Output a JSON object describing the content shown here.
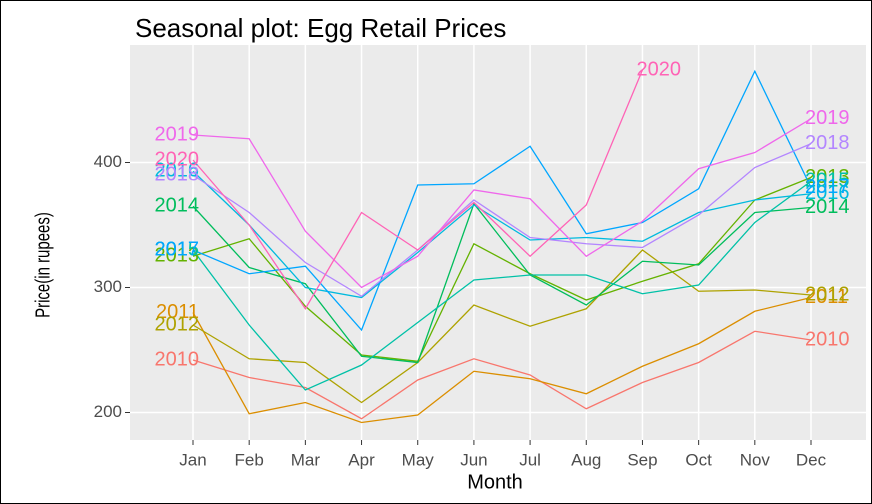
{
  "chart_data": {
    "type": "line",
    "title": "Seasonal plot: Egg Retail Prices",
    "xlabel": "Month",
    "ylabel": "Price(in rupees)",
    "categories": [
      "Jan",
      "Feb",
      "Mar",
      "Apr",
      "May",
      "Jun",
      "Jul",
      "Aug",
      "Sep",
      "Oct",
      "Nov",
      "Dec"
    ],
    "ylim": [
      178,
      494
    ],
    "yticks": [
      200,
      300,
      400
    ],
    "grid": true,
    "series": [
      {
        "name": "2010",
        "color": "#F8766D",
        "values": [
          242,
          228,
          220,
          195,
          226,
          243,
          230,
          203,
          224,
          240,
          265,
          258
        ]
      },
      {
        "name": "2011",
        "color": "#DB8E00",
        "values": [
          280,
          199,
          208,
          192,
          198,
          233,
          227,
          215,
          237,
          255,
          281,
          292
        ]
      },
      {
        "name": "2012",
        "color": "#AEA200",
        "values": [
          270,
          243,
          240,
          208,
          240,
          286,
          269,
          283,
          330,
          297,
          298,
          294
        ]
      },
      {
        "name": "2013",
        "color": "#64B200",
        "values": [
          325,
          339,
          285,
          246,
          241,
          335,
          311,
          290,
          305,
          319,
          370,
          388
        ]
      },
      {
        "name": "2014",
        "color": "#00BD5C",
        "values": [
          365,
          316,
          303,
          245,
          240,
          367,
          310,
          286,
          321,
          318,
          360,
          364
        ]
      },
      {
        "name": "2015",
        "color": "#00C1A7",
        "values": [
          330,
          270,
          218,
          238,
          272,
          306,
          310,
          310,
          295,
          302,
          352,
          385
        ]
      },
      {
        "name": "2016",
        "color": "#00BADE",
        "values": [
          393,
          350,
          300,
          292,
          328,
          366,
          338,
          340,
          337,
          360,
          370,
          375
        ]
      },
      {
        "name": "2017",
        "color": "#00A6FF",
        "values": [
          330,
          311,
          317,
          266,
          382,
          383,
          413,
          343,
          352,
          379,
          473,
          380
        ]
      },
      {
        "name": "2018",
        "color": "#B385FF",
        "values": [
          390,
          360,
          320,
          293,
          330,
          370,
          340,
          335,
          332,
          358,
          396,
          415
        ]
      },
      {
        "name": "2019",
        "color": "#EF67EB",
        "values": [
          422,
          419,
          345,
          300,
          325,
          378,
          371,
          325,
          353,
          395,
          408,
          435
        ]
      },
      {
        "name": "2020",
        "color": "#FF63B6",
        "values": [
          402,
          350,
          283,
          360,
          330,
          368,
          325,
          366,
          474,
          null,
          null,
          null
        ]
      }
    ]
  }
}
